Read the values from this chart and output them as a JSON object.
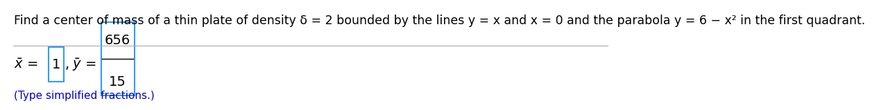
{
  "problem_text": "Find a center of mass of a thin plate of density δ = 2 bounded by the lines y = x and x = 0 and the parabola y = 6 − x² in the first quadrant.",
  "xbar_value": "1",
  "ybar_numerator": "656",
  "ybar_denominator": "15",
  "footnote": "(Type simplified fractions.)",
  "bg_color": "#ffffff",
  "text_color": "#000000",
  "footnote_color": "#0000cc",
  "box_color": "#3399ff",
  "divider_color": "#aaaaaa",
  "problem_fontsize": 12.5,
  "answer_fontsize": 14,
  "footnote_fontsize": 11
}
